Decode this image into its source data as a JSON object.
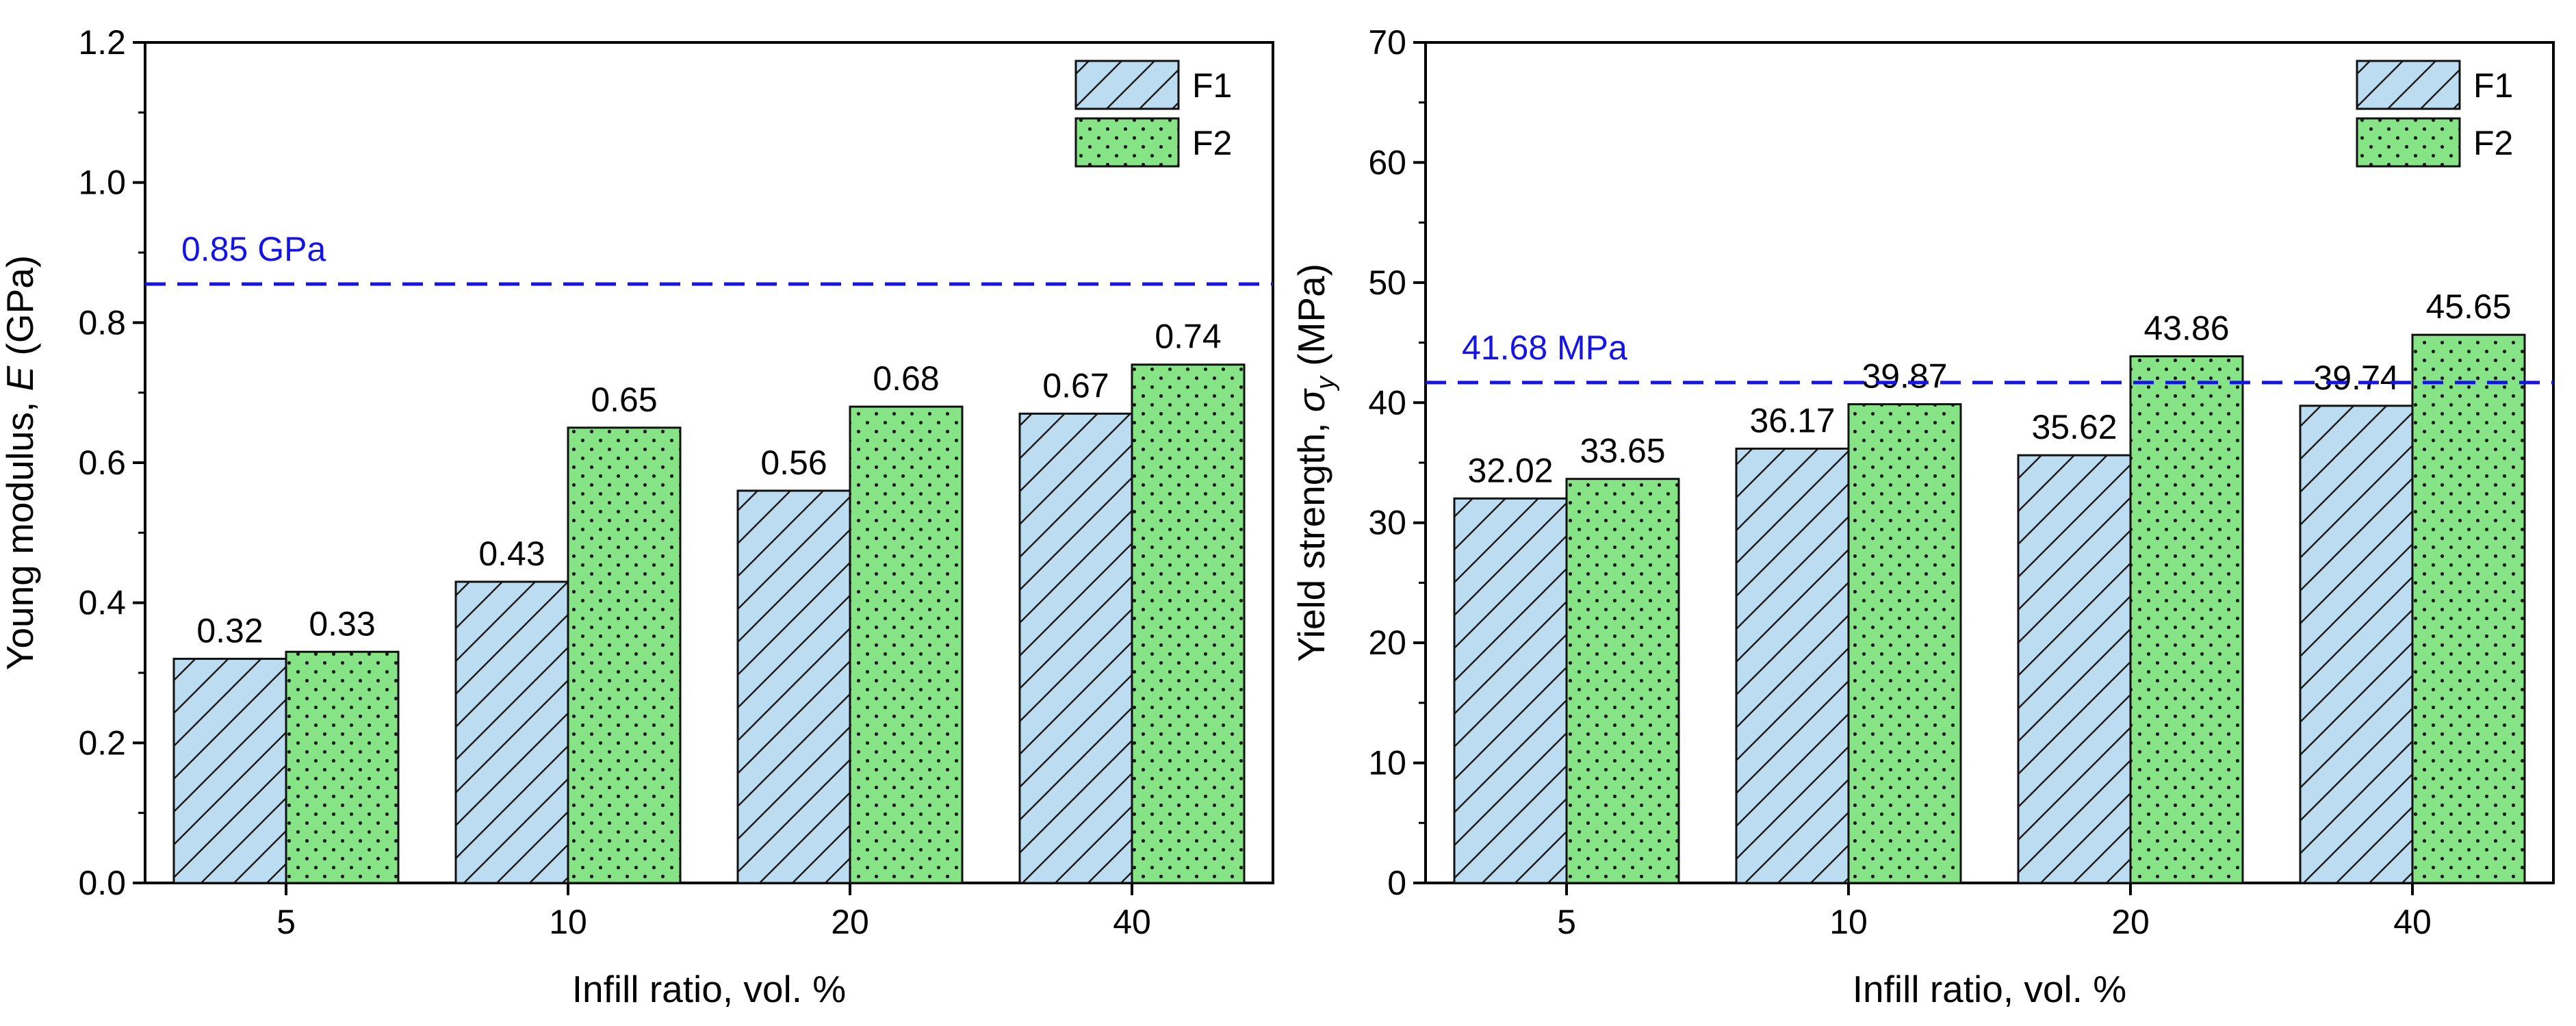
{
  "colors": {
    "f1_fill": "#bcdcf2",
    "f2_fill": "#86e486",
    "reference_line": "#1414e6",
    "axis": "#000000"
  },
  "chart_data": [
    {
      "type": "bar",
      "id": "young-modulus-chart",
      "title": "",
      "xlabel": "Infill ratio, vol. %",
      "ylabel_prefix": "Young modulus, ",
      "ylabel_symbol": "E",
      "ylabel_sub": "",
      "ylabel_suffix": " (GPa)",
      "categories": [
        "5",
        "10",
        "20",
        "40"
      ],
      "series": [
        {
          "name": "F1",
          "pattern": "hatch",
          "values": [
            0.32,
            0.43,
            0.56,
            0.67
          ],
          "labels": [
            "0.32",
            "0.43",
            "0.56",
            "0.67"
          ]
        },
        {
          "name": "F2",
          "pattern": "dots",
          "values": [
            0.33,
            0.65,
            0.68,
            0.74
          ],
          "labels": [
            "0.33",
            "0.65",
            "0.68",
            "0.74"
          ]
        }
      ],
      "ylim": [
        0,
        1.2
      ],
      "yticks": [
        0.0,
        0.2,
        0.4,
        0.6,
        0.8,
        1.0,
        1.2
      ],
      "ytick_labels": [
        "0.0",
        "0.2",
        "0.4",
        "0.6",
        "0.8",
        "1.0",
        "1.2"
      ],
      "reference_line": {
        "value": 0.855,
        "label": "0.85 GPa"
      },
      "legend": "top-right"
    },
    {
      "type": "bar",
      "id": "yield-strength-chart",
      "title": "",
      "xlabel": "Infill ratio, vol. %",
      "ylabel_prefix": "Yield strength, ",
      "ylabel_symbol": "σ",
      "ylabel_sub": "y",
      "ylabel_suffix": " (MPa)",
      "categories": [
        "5",
        "10",
        "20",
        "40"
      ],
      "series": [
        {
          "name": "F1",
          "pattern": "hatch",
          "values": [
            32.02,
            36.17,
            35.62,
            39.74
          ],
          "labels": [
            "32.02",
            "36.17",
            "35.62",
            "39.74"
          ]
        },
        {
          "name": "F2",
          "pattern": "dots",
          "values": [
            33.65,
            39.87,
            43.86,
            45.65
          ],
          "labels": [
            "33.65",
            "39.87",
            "43.86",
            "45.65"
          ]
        }
      ],
      "ylim": [
        0,
        70
      ],
      "yticks": [
        0,
        10,
        20,
        30,
        40,
        50,
        60,
        70
      ],
      "ytick_labels": [
        "0",
        "10",
        "20",
        "30",
        "40",
        "50",
        "60",
        "70"
      ],
      "reference_line": {
        "value": 41.68,
        "label": "41.68 MPa"
      },
      "legend": "top-right"
    }
  ]
}
